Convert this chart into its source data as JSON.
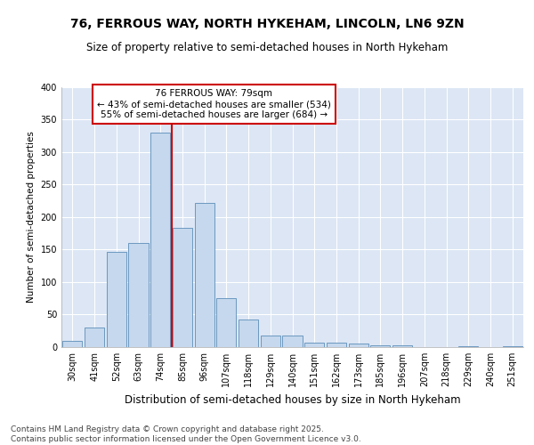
{
  "title": "76, FERROUS WAY, NORTH HYKEHAM, LINCOLN, LN6 9ZN",
  "subtitle": "Size of property relative to semi-detached houses in North Hykeham",
  "xlabel": "Distribution of semi-detached houses by size in North Hykeham",
  "ylabel": "Number of semi-detached properties",
  "categories": [
    "30sqm",
    "41sqm",
    "52sqm",
    "63sqm",
    "74sqm",
    "85sqm",
    "96sqm",
    "107sqm",
    "118sqm",
    "129sqm",
    "140sqm",
    "151sqm",
    "162sqm",
    "173sqm",
    "185sqm",
    "196sqm",
    "207sqm",
    "218sqm",
    "229sqm",
    "240sqm",
    "251sqm"
  ],
  "values": [
    9,
    30,
    146,
    160,
    330,
    183,
    222,
    75,
    42,
    18,
    18,
    7,
    7,
    5,
    3,
    3,
    0,
    0,
    1,
    0,
    2
  ],
  "bar_color": "#c5d8ed",
  "bar_edge_color": "#5b8db8",
  "vline_x": 4.5,
  "vline_color": "#cc0000",
  "annotation_text": "76 FERROUS WAY: 79sqm\n← 43% of semi-detached houses are smaller (534)\n55% of semi-detached houses are larger (684) →",
  "annotation_box_color": "white",
  "annotation_box_edge_color": "#cc0000",
  "ylim": [
    0,
    400
  ],
  "yticks": [
    0,
    50,
    100,
    150,
    200,
    250,
    300,
    350,
    400
  ],
  "fig_bg_color": "#ffffff",
  "plot_bg_color": "#dce6f5",
  "grid_color": "#ffffff",
  "footer": "Contains HM Land Registry data © Crown copyright and database right 2025.\nContains public sector information licensed under the Open Government Licence v3.0.",
  "title_fontsize": 10,
  "subtitle_fontsize": 8.5,
  "xlabel_fontsize": 8.5,
  "ylabel_fontsize": 7.5,
  "tick_fontsize": 7,
  "annotation_fontsize": 7.5,
  "footer_fontsize": 6.5
}
